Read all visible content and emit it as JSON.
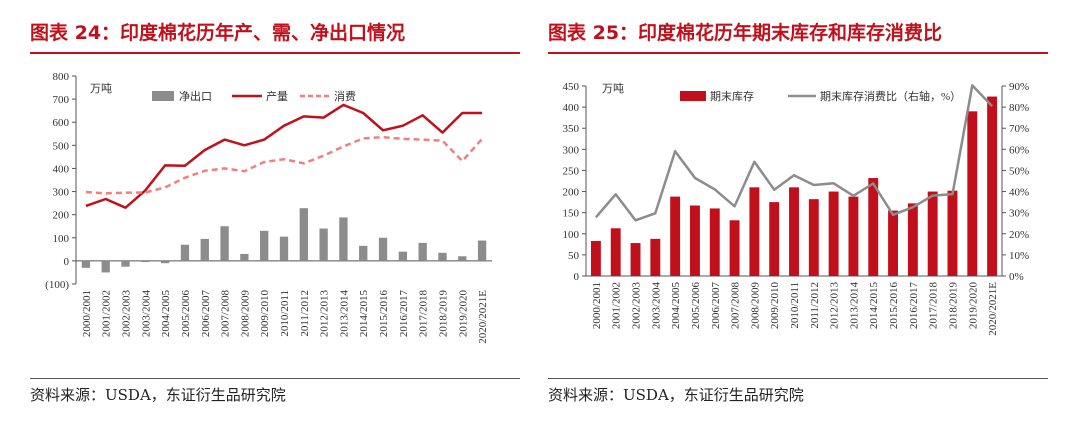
{
  "left": {
    "title": "图表 24：印度棉花历年产、需、净出口情况",
    "source": "资料来源：USDA，东证衍生品研究院",
    "chart_data": {
      "type": "bar+line",
      "unit_label": "万吨",
      "categories": [
        "2000/2001",
        "2001/2002",
        "2002/2003",
        "2003/2004",
        "2004/2005",
        "2005/2006",
        "2006/2007",
        "2007/2008",
        "2008/2009",
        "2009/2010",
        "2010/2011",
        "2011/2012",
        "2012/2013",
        "2013/2014",
        "2014/2015",
        "2015/2016",
        "2016/2017",
        "2017/2018",
        "2018/2019",
        "2019/2020",
        "2020/2021E"
      ],
      "y_ticks": [
        "800",
        "700",
        "600",
        "500",
        "400",
        "300",
        "200",
        "100",
        "0",
        "(100)"
      ],
      "ylim": [
        -100,
        800
      ],
      "series": [
        {
          "name": "净出口",
          "kind": "bar",
          "color": "#8c8c8c",
          "values": [
            -30,
            -50,
            -25,
            -5,
            -10,
            70,
            95,
            150,
            30,
            130,
            105,
            228,
            140,
            188,
            65,
            100,
            40,
            78,
            35,
            20,
            88
          ]
        },
        {
          "name": "产量",
          "kind": "line",
          "color": "#c0101b",
          "values": [
            238,
            268,
            230,
            305,
            413,
            412,
            480,
            525,
            500,
            525,
            585,
            625,
            620,
            675,
            640,
            565,
            585,
            630,
            555,
            640,
            640
          ]
        },
        {
          "name": "消费",
          "kind": "dashed-line",
          "color": "#f08080",
          "values": [
            298,
            292,
            295,
            296,
            318,
            360,
            390,
            400,
            388,
            428,
            440,
            422,
            455,
            495,
            530,
            535,
            528,
            525,
            520,
            432,
            528
          ]
        }
      ]
    }
  },
  "right": {
    "title": "图表 25：印度棉花历年期末库存和库存消费比",
    "source": "资料来源：USDA，东证衍生品研究院",
    "chart_data": {
      "type": "bar+line",
      "unit_label": "万吨",
      "categories": [
        "2000/2001",
        "2001/2002",
        "2002/2003",
        "2003/2004",
        "2004/2005",
        "2005/2006",
        "2006/2007",
        "2007/2008",
        "2008/2009",
        "2009/2010",
        "2010/2011",
        "2011/2012",
        "2012/2013",
        "2013/2014",
        "2014/2015",
        "2015/2016",
        "2016/2017",
        "2017/2018",
        "2018/2019",
        "2019/2020",
        "2020/2021E"
      ],
      "y_ticks": [
        "450",
        "400",
        "350",
        "300",
        "250",
        "200",
        "150",
        "100",
        "50",
        "0"
      ],
      "y2_ticks": [
        "90%",
        "80%",
        "70%",
        "60%",
        "50%",
        "40%",
        "30%",
        "20%",
        "10%",
        "0%"
      ],
      "ylim": [
        0,
        450
      ],
      "y2lim": [
        0,
        90
      ],
      "series": [
        {
          "name": "期末库存",
          "kind": "bar",
          "color": "#c0101b",
          "values": [
            83,
            113,
            78,
            88,
            188,
            167,
            160,
            132,
            210,
            175,
            210,
            182,
            200,
            188,
            232,
            155,
            172,
            200,
            202,
            390,
            425
          ]
        },
        {
          "name": "期末库存消费比（右轴，%）",
          "kind": "line",
          "color": "#8c8c8c",
          "values": [
            27.8,
            38.7,
            26.4,
            29.7,
            59.1,
            46.4,
            41.0,
            33.0,
            54.1,
            40.9,
            47.7,
            43.1,
            43.9,
            38.0,
            43.8,
            29.0,
            32.6,
            38.1,
            38.8,
            90.3,
            80.5
          ]
        }
      ]
    }
  }
}
